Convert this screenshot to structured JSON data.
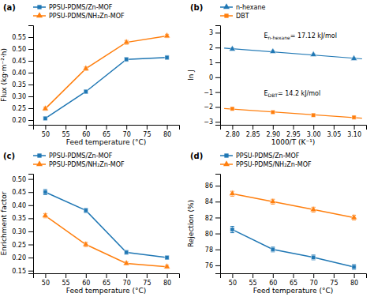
{
  "chart_data": [
    {
      "type": "line",
      "title": "(a)",
      "xlabel": "Feed temperature (°C)",
      "ylabel": "Flux (kg·m⁻²·h)",
      "x": [
        50,
        60,
        70,
        80
      ],
      "series": [
        {
          "name": "PPSU-PDMS/Zn-MOF",
          "marker": "square",
          "values": [
            0.207,
            0.32,
            0.456,
            0.464
          ],
          "errors": [
            0.007,
            0.008,
            0.008,
            0.008
          ]
        },
        {
          "name": "PPSU-PDMS/NH₂Zn-MOF",
          "marker": "triangle",
          "values": [
            0.248,
            0.417,
            0.528,
            0.555
          ],
          "errors": [
            0.007,
            0.007,
            0.008,
            0.007
          ]
        }
      ],
      "xlim": [
        47,
        83
      ],
      "ylim": [
        0.18,
        0.6
      ],
      "xticks": [
        50,
        55,
        60,
        65,
        70,
        75,
        80
      ],
      "yticks": [
        {
          "value": 0.2,
          "label": "0.20"
        },
        0.25,
        {
          "value": 0.3,
          "label": "0.30"
        },
        0.35,
        {
          "value": 0.4,
          "label": "0.40"
        },
        0.45,
        {
          "value": 0.5,
          "label": "0.50"
        },
        0.55
      ],
      "grid": false,
      "legend": "top"
    },
    {
      "type": "line",
      "title": "(b)",
      "xlabel": "1000/T (K⁻¹)",
      "ylabel": "ln J",
      "x": [
        2.8,
        2.9,
        3.0,
        3.1
      ],
      "series": [
        {
          "name": "n-hexane",
          "marker": "triangle",
          "values": [
            1.9,
            1.73,
            1.52,
            1.26
          ],
          "errors": [
            0.06,
            0.05,
            0.05,
            0.05
          ],
          "fit": {
            "x": [
              2.78,
              3.12
            ],
            "values": [
              1.9646,
              1.2404
            ]
          }
        },
        {
          "name": "DBT",
          "marker": "square",
          "values": [
            -2.12,
            -2.35,
            -2.55,
            -2.7
          ],
          "errors": [
            0.05,
            0.05,
            0.05,
            0.05
          ],
          "fit": {
            "x": [
              2.78,
              3.12
            ],
            "values": [
              -2.1002,
              -2.7598
            ]
          }
        }
      ],
      "annotations": [
        {
          "text": "En-hexane= 17.12 kJ/mol"
        },
        {
          "text": "EDBT= 14.2 kJ/mol"
        }
      ],
      "xlim": [
        2.77,
        3.13
      ],
      "ylim": [
        -3.2,
        3.5
      ],
      "xticks": [
        {
          "value": 2.8,
          "label": "2.80"
        },
        2.85,
        {
          "value": 2.9,
          "label": "2.90"
        },
        2.95,
        {
          "value": 3.0,
          "label": "3.00"
        },
        3.05,
        {
          "value": 3.1,
          "label": "3.10"
        }
      ],
      "yticks": [
        {
          "value": -3,
          "label": "−3"
        },
        {
          "value": -2,
          "label": "−2"
        },
        {
          "value": -1,
          "label": "−1"
        },
        0,
        1,
        2,
        3
      ],
      "grid": false,
      "legend": "top"
    },
    {
      "type": "line",
      "title": "(c)",
      "xlabel": "Feed temperature (°C)",
      "ylabel": "Enrichment factor",
      "x": [
        50,
        60,
        70,
        80
      ],
      "series": [
        {
          "name": "PPSU-PDMS/Zn-MOF",
          "marker": "square",
          "values": [
            0.45,
            0.38,
            0.22,
            0.2
          ],
          "errors": [
            0.01,
            0.008,
            0.007,
            0.007
          ]
        },
        {
          "name": "PPSU-PDMS/NH₂Zn-MOF",
          "marker": "triangle",
          "values": [
            0.36,
            0.25,
            0.178,
            0.165
          ],
          "errors": [
            0.008,
            0.008,
            0.006,
            0.006
          ]
        }
      ],
      "xlim": [
        47,
        83
      ],
      "ylim": [
        0.14,
        0.52
      ],
      "xticks": [
        50,
        55,
        60,
        65,
        70,
        75,
        80
      ],
      "yticks": [
        0.15,
        {
          "value": 0.2,
          "label": "0.20"
        },
        0.25,
        {
          "value": 0.3,
          "label": "0.30"
        },
        0.35,
        {
          "value": 0.4,
          "label": "0.40"
        },
        0.45,
        {
          "value": 0.5,
          "label": "0.50"
        }
      ],
      "grid": false,
      "legend": "top"
    },
    {
      "type": "line",
      "title": "(d)",
      "xlabel": "Feed temperature (°C)",
      "ylabel": "Rejection (%)",
      "x": [
        50,
        60,
        70,
        80
      ],
      "series": [
        {
          "name": "PPSU-PDMS/Zn-MOF",
          "marker": "square",
          "values": [
            80.5,
            78.0,
            77.0,
            75.8
          ],
          "errors": [
            0.4,
            0.3,
            0.3,
            0.3
          ]
        },
        {
          "name": "PPSU-PDMS/NH₂Zn-MOF",
          "marker": "triangle",
          "values": [
            85.0,
            84.0,
            83.0,
            82.0
          ],
          "errors": [
            0.3,
            0.3,
            0.3,
            0.3
          ]
        }
      ],
      "xlim": [
        47,
        83
      ],
      "ylim": [
        75,
        87.5
      ],
      "xticks": [
        50,
        55,
        60,
        65,
        70,
        75,
        80
      ],
      "yticks": [
        76,
        78,
        80,
        82,
        84,
        86
      ],
      "grid": false,
      "legend": "top"
    }
  ]
}
